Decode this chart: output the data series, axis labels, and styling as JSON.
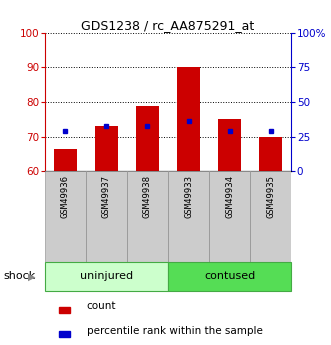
{
  "title": "GDS1238 / rc_AA875291_at",
  "categories": [
    "GSM49936",
    "GSM49937",
    "GSM49938",
    "GSM49933",
    "GSM49934",
    "GSM49935"
  ],
  "red_values": [
    66.5,
    73.0,
    79.0,
    90.0,
    75.0,
    70.0
  ],
  "blue_values": [
    71.5,
    73.0,
    73.0,
    74.5,
    71.5,
    71.5
  ],
  "ylim_left": [
    60,
    100
  ],
  "ylim_right": [
    0,
    100
  ],
  "left_ticks": [
    60,
    70,
    80,
    90,
    100
  ],
  "right_ticks": [
    0,
    25,
    50,
    75,
    100
  ],
  "right_tick_labels": [
    "0",
    "25",
    "50",
    "75",
    "100%"
  ],
  "bar_color": "#cc0000",
  "dot_color": "#0000cc",
  "bar_width": 0.55,
  "shock_label": "shock",
  "legend_red": "count",
  "legend_blue": "percentile rank within the sample",
  "axis_color_left": "#cc0000",
  "axis_color_right": "#0000cc",
  "uninjured_color": "#ccffcc",
  "contused_color": "#55dd55",
  "label_bg": "#cccccc",
  "label_border": "#999999",
  "group_border": "#44aa44"
}
